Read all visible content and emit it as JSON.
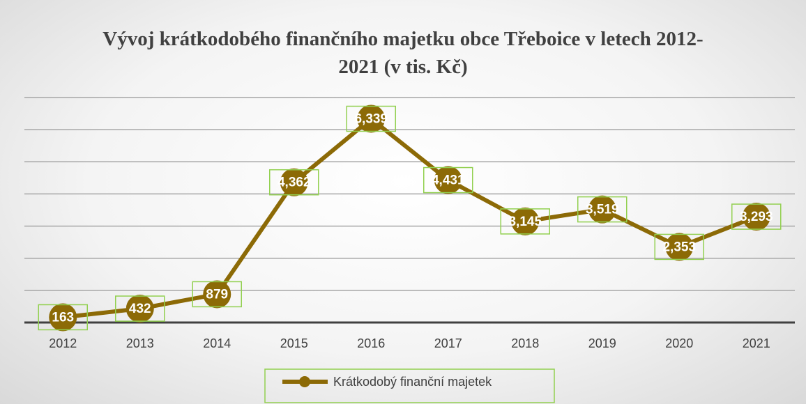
{
  "chart_data": {
    "type": "line",
    "title": "Vývoj krátkodobého finančního majetku obce Třeboice v letech 2012-2021 (v tis. Kč)",
    "categories": [
      "2012",
      "2013",
      "2014",
      "2015",
      "2016",
      "2017",
      "2018",
      "2019",
      "2020",
      "2021"
    ],
    "series": [
      {
        "name": "Krátkodobý finanční majetek",
        "color": "#8c6a06",
        "values": [
          163,
          432,
          879,
          4362,
          6339,
          4431,
          3145,
          3519,
          2353,
          3293
        ],
        "value_labels": [
          "163",
          "432",
          "879",
          "4,362",
          "6,339",
          "4,431",
          "3,145",
          "3,519",
          "2,353",
          "3,293"
        ]
      }
    ],
    "ylim": [
      0,
      7000
    ],
    "yticks": [
      0,
      1000,
      2000,
      3000,
      4000,
      5000,
      6000,
      7000
    ],
    "grid": true,
    "legend": "bottom"
  }
}
